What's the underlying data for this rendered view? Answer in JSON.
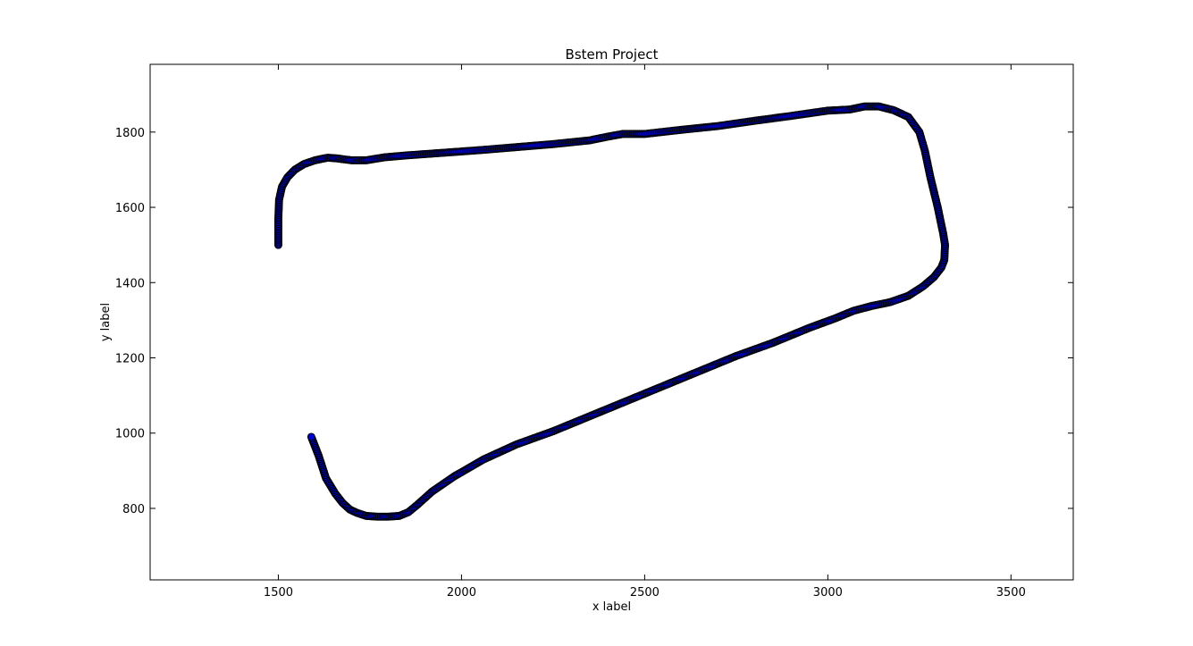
{
  "chart_data": {
    "type": "scatter",
    "title": "Bstem Project",
    "xlabel": "x label",
    "ylabel": "y label",
    "xlim": [
      1150,
      3670
    ],
    "ylim": [
      610,
      1980
    ],
    "x_ticks": [
      1500,
      2000,
      2500,
      3000,
      3500
    ],
    "y_ticks": [
      800,
      1000,
      1200,
      1400,
      1600,
      1800
    ],
    "grid": false,
    "legend": "none",
    "marker_color": "#0000cc",
    "marker_edge_color": "#000000",
    "series": [
      {
        "x": [
          1500,
          1500,
          1502,
          1510,
          1525,
          1545,
          1570,
          1600,
          1635,
          1660,
          1700,
          1740,
          1790,
          1850,
          1950,
          2050,
          2150,
          2250,
          2350,
          2400,
          2440,
          2500,
          2600,
          2700,
          2800,
          2900,
          3000,
          3060,
          3100,
          3140,
          3180,
          3220,
          3250,
          3265,
          3280,
          3300,
          3315,
          3320,
          3318,
          3310,
          3290,
          3260,
          3220,
          3170,
          3120,
          3070,
          3020,
          2950,
          2850,
          2750,
          2650,
          2550,
          2450,
          2350,
          2250,
          2150,
          2060,
          1980,
          1920,
          1880,
          1855,
          1830,
          1800,
          1770,
          1740,
          1715,
          1695,
          1675,
          1655,
          1630,
          1610,
          1590
        ],
        "y": [
          1500,
          1570,
          1620,
          1655,
          1680,
          1700,
          1715,
          1725,
          1732,
          1730,
          1725,
          1725,
          1733,
          1738,
          1745,
          1752,
          1760,
          1768,
          1778,
          1788,
          1795,
          1795,
          1806,
          1816,
          1830,
          1843,
          1857,
          1860,
          1868,
          1868,
          1858,
          1840,
          1800,
          1750,
          1680,
          1600,
          1530,
          1500,
          1460,
          1440,
          1415,
          1390,
          1365,
          1348,
          1338,
          1325,
          1305,
          1280,
          1240,
          1205,
          1165,
          1125,
          1085,
          1045,
          1005,
          970,
          930,
          885,
          845,
          810,
          790,
          780,
          778,
          778,
          780,
          788,
          797,
          815,
          840,
          880,
          940,
          990
        ]
      }
    ]
  }
}
